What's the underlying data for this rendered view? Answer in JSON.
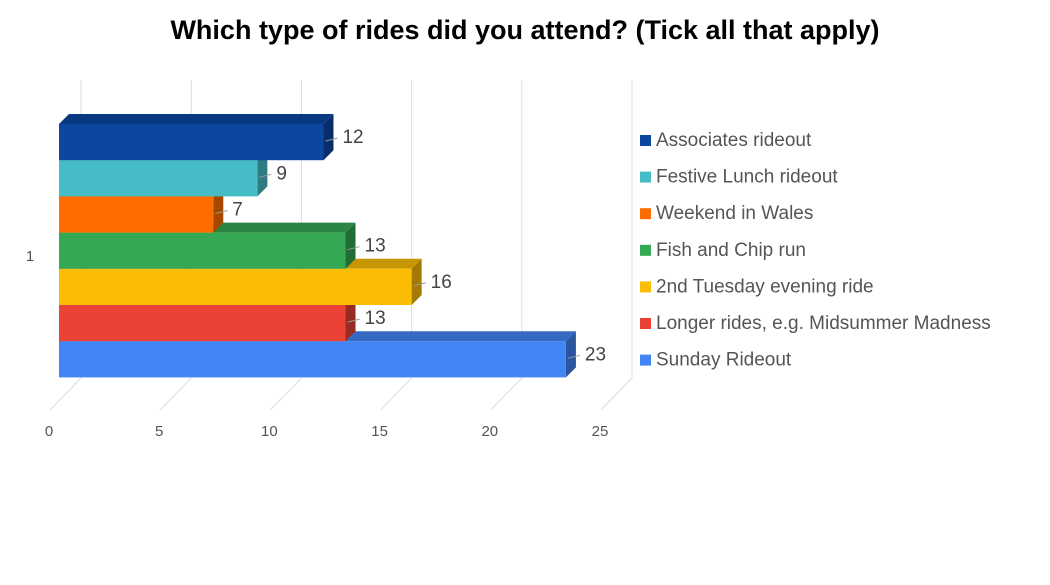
{
  "chart_data": {
    "type": "bar3d_horizontal",
    "title": "Which type of rides did you attend? (Tick all that apply)",
    "categories": [
      "1"
    ],
    "series": [
      {
        "name": "Associates rideout",
        "color": "#0b47a1",
        "values": [
          12
        ]
      },
      {
        "name": "Festive Lunch rideout",
        "color": "#46bdc6",
        "values": [
          9
        ]
      },
      {
        "name": "Weekend in Wales",
        "color": "#ff6d00",
        "values": [
          7
        ]
      },
      {
        "name": "Fish and Chip run",
        "color": "#34a853",
        "values": [
          13
        ]
      },
      {
        "name": "2nd Tuesday evening ride",
        "color": "#fbbc04",
        "values": [
          16
        ]
      },
      {
        "name": "Longer rides, e.g. Midsummer Madness",
        "color": "#ea4335",
        "values": [
          13
        ]
      },
      {
        "name": "Sunday Rideout",
        "color": "#4285f4",
        "values": [
          23
        ]
      }
    ],
    "xlim": [
      0,
      25
    ],
    "xticks": [
      0,
      5,
      10,
      15,
      20,
      25
    ],
    "grid": true,
    "legend": "right"
  }
}
